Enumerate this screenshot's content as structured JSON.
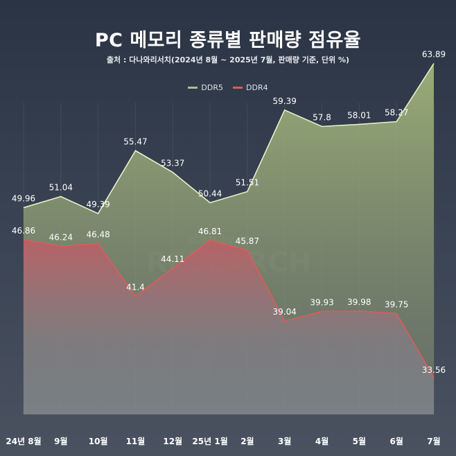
{
  "chart_data": {
    "type": "area",
    "title": "PC 메모리 종류별 판매량 점유율",
    "subtitle": "출처 : 다나와리서치(2024년 8월 ~ 2025년 7월, 판매량 기준, 단위 %)",
    "categories": [
      "24년 8월",
      "9월",
      "10월",
      "11월",
      "12월",
      "25년 1월",
      "2월",
      "3월",
      "4월",
      "5월",
      "6월",
      "7월"
    ],
    "series": [
      {
        "name": "DDR5",
        "color": "#c9dca4",
        "values": [
          49.96,
          51.04,
          49.39,
          55.47,
          53.37,
          50.44,
          51.51,
          59.39,
          57.8,
          58.01,
          58.27,
          63.89
        ]
      },
      {
        "name": "DDR4",
        "color": "#e05a5a",
        "values": [
          46.86,
          46.24,
          46.48,
          41.4,
          44.11,
          46.81,
          45.87,
          39.04,
          39.93,
          39.98,
          39.75,
          33.56
        ]
      }
    ],
    "ylim": [
      30,
      66
    ],
    "grid": "vertical",
    "legend_position": "top-center",
    "watermark": "danawa RESEARCH"
  }
}
